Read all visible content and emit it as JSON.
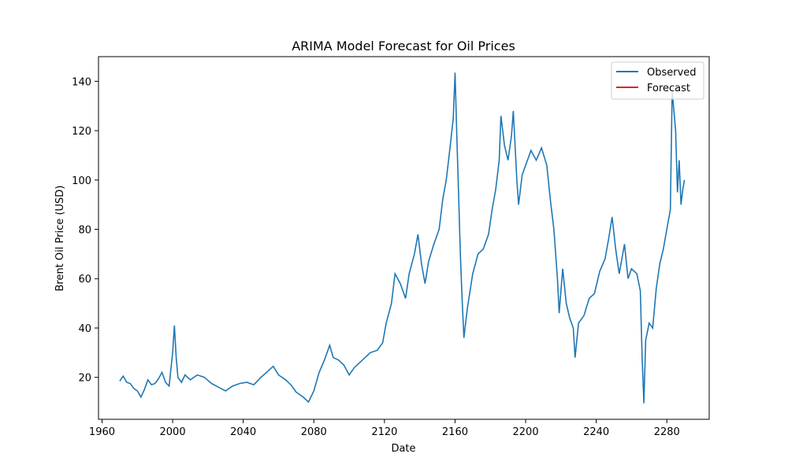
{
  "chart_data": {
    "type": "line",
    "title": "ARIMA Model Forecast for Oil Prices",
    "xlabel": "Date",
    "ylabel": "Brent Oil Price (USD)",
    "xlim": [
      1958,
      2304
    ],
    "ylim": [
      3,
      150
    ],
    "x_ticks": [
      1960,
      2000,
      2040,
      2080,
      2120,
      2160,
      2200,
      2240,
      2280
    ],
    "y_ticks": [
      20,
      40,
      60,
      80,
      100,
      120,
      140
    ],
    "grid": false,
    "legend_position": "top-right",
    "series": [
      {
        "name": "Observed",
        "color": "#1f77b4",
        "points": [
          [
            1970,
            18.5
          ],
          [
            1972,
            20.5
          ],
          [
            1974,
            18.0
          ],
          [
            1976,
            17.5
          ],
          [
            1978,
            15.5
          ],
          [
            1980,
            14.5
          ],
          [
            1982,
            12.0
          ],
          [
            1984,
            15.0
          ],
          [
            1986,
            19.0
          ],
          [
            1988,
            17.0
          ],
          [
            1990,
            17.5
          ],
          [
            1992,
            19.5
          ],
          [
            1994,
            22.0
          ],
          [
            1996,
            18.0
          ],
          [
            1998,
            16.5
          ],
          [
            2000,
            30.0
          ],
          [
            2001,
            41.0
          ],
          [
            2002,
            28.0
          ],
          [
            2003,
            20.0
          ],
          [
            2005,
            18.0
          ],
          [
            2007,
            21.0
          ],
          [
            2010,
            19.0
          ],
          [
            2014,
            21.0
          ],
          [
            2018,
            20.0
          ],
          [
            2022,
            17.5
          ],
          [
            2026,
            16.0
          ],
          [
            2030,
            14.5
          ],
          [
            2034,
            16.5
          ],
          [
            2038,
            17.5
          ],
          [
            2042,
            18.0
          ],
          [
            2046,
            17.0
          ],
          [
            2050,
            20.0
          ],
          [
            2054,
            22.5
          ],
          [
            2057,
            24.5
          ],
          [
            2060,
            21.0
          ],
          [
            2064,
            19.0
          ],
          [
            2067,
            17.0
          ],
          [
            2070,
            14.0
          ],
          [
            2074,
            12.0
          ],
          [
            2077,
            10.0
          ],
          [
            2080,
            14.5
          ],
          [
            2083,
            22.0
          ],
          [
            2086,
            27.0
          ],
          [
            2089,
            33.0
          ],
          [
            2091,
            28.0
          ],
          [
            2094,
            27.0
          ],
          [
            2097,
            25.0
          ],
          [
            2100,
            21.0
          ],
          [
            2103,
            24.0
          ],
          [
            2106,
            26.0
          ],
          [
            2109,
            28.0
          ],
          [
            2112,
            30.0
          ],
          [
            2116,
            31.0
          ],
          [
            2119,
            34.0
          ],
          [
            2121,
            42.0
          ],
          [
            2124,
            50.0
          ],
          [
            2126,
            62.0
          ],
          [
            2129,
            58.0
          ],
          [
            2132,
            52.0
          ],
          [
            2134,
            62.0
          ],
          [
            2137,
            70.0
          ],
          [
            2139,
            78.0
          ],
          [
            2141,
            66.0
          ],
          [
            2143,
            58.0
          ],
          [
            2145,
            67.0
          ],
          [
            2148,
            74.0
          ],
          [
            2151,
            80.0
          ],
          [
            2153,
            92.0
          ],
          [
            2155,
            100.0
          ],
          [
            2157,
            112.0
          ],
          [
            2159,
            125.0
          ],
          [
            2160,
            143.5
          ],
          [
            2161,
            118.0
          ],
          [
            2162,
            95.0
          ],
          [
            2163,
            70.0
          ],
          [
            2164,
            52.0
          ],
          [
            2165,
            36.0
          ],
          [
            2167,
            48.0
          ],
          [
            2170,
            62.0
          ],
          [
            2173,
            70.0
          ],
          [
            2176,
            72.0
          ],
          [
            2179,
            78.0
          ],
          [
            2181,
            88.0
          ],
          [
            2183,
            96.0
          ],
          [
            2185,
            108.0
          ],
          [
            2186,
            126.0
          ],
          [
            2188,
            114.0
          ],
          [
            2190,
            108.0
          ],
          [
            2192,
            118.0
          ],
          [
            2193,
            128.0
          ],
          [
            2195,
            100.0
          ],
          [
            2196,
            90.0
          ],
          [
            2198,
            102.0
          ],
          [
            2200,
            106.0
          ],
          [
            2203,
            112.0
          ],
          [
            2206,
            108.0
          ],
          [
            2209,
            113.0
          ],
          [
            2212,
            106.0
          ],
          [
            2214,
            92.0
          ],
          [
            2216,
            80.0
          ],
          [
            2218,
            60.0
          ],
          [
            2219,
            46.0
          ],
          [
            2221,
            64.0
          ],
          [
            2223,
            50.0
          ],
          [
            2225,
            44.0
          ],
          [
            2227,
            40.0
          ],
          [
            2228,
            28.0
          ],
          [
            2230,
            42.0
          ],
          [
            2233,
            45.0
          ],
          [
            2236,
            52.0
          ],
          [
            2239,
            54.0
          ],
          [
            2242,
            63.0
          ],
          [
            2245,
            68.0
          ],
          [
            2247,
            76.0
          ],
          [
            2249,
            85.0
          ],
          [
            2251,
            72.0
          ],
          [
            2253,
            62.0
          ],
          [
            2256,
            74.0
          ],
          [
            2258,
            60.0
          ],
          [
            2260,
            64.0
          ],
          [
            2263,
            62.0
          ],
          [
            2265,
            55.0
          ],
          [
            2266,
            28.0
          ],
          [
            2267,
            9.5
          ],
          [
            2268,
            35.0
          ],
          [
            2270,
            42.0
          ],
          [
            2272,
            40.0
          ],
          [
            2274,
            56.0
          ],
          [
            2276,
            66.0
          ],
          [
            2278,
            72.0
          ],
          [
            2280,
            80.0
          ],
          [
            2282,
            88.0
          ],
          [
            2283,
            136.0
          ],
          [
            2285,
            120.0
          ],
          [
            2286,
            95.0
          ],
          [
            2287,
            108.0
          ],
          [
            2288,
            90.0
          ],
          [
            2289,
            96.0
          ],
          [
            2290,
            100.0
          ]
        ]
      },
      {
        "name": "Forecast",
        "color": "#d62728",
        "points": []
      }
    ]
  }
}
